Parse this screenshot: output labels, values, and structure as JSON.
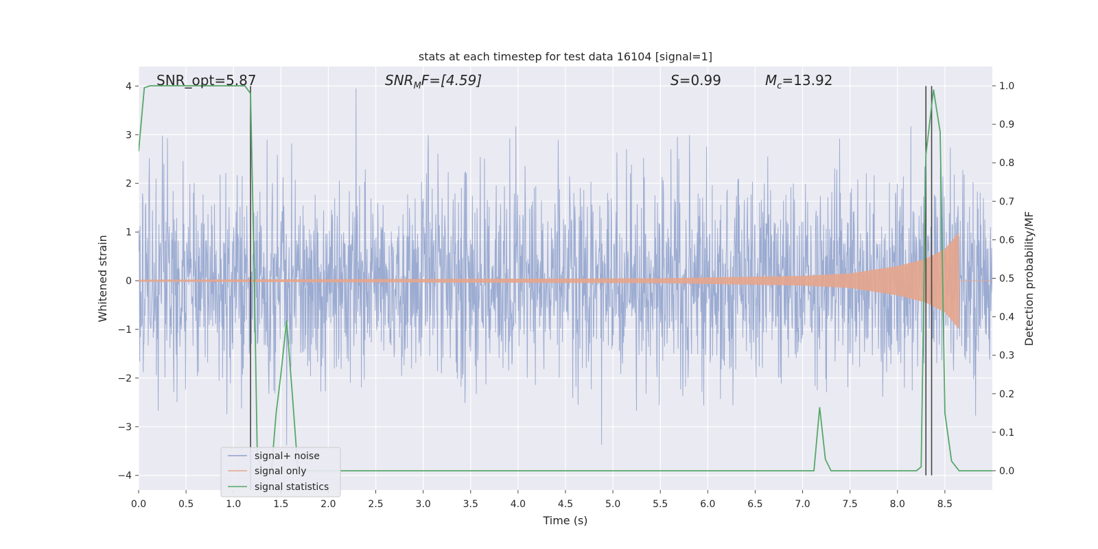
{
  "chart_data": {
    "type": "line",
    "title": "stats at each timestep for test data 16104 [signal=1]",
    "xlabel": "Time (s)",
    "ylabel_left": "Whitened strain",
    "ylabel_right": "Detection probability/MF",
    "xlim": [
      0,
      9.0
    ],
    "ylim_left": [
      -4.3,
      4.4
    ],
    "ylim_right": [
      -0.05,
      1.05
    ],
    "x_ticks": [
      0.0,
      0.5,
      1.0,
      1.5,
      2.0,
      2.5,
      3.0,
      3.5,
      4.0,
      4.5,
      5.0,
      5.5,
      6.0,
      6.5,
      7.0,
      7.5,
      8.0,
      8.5
    ],
    "x_tick_labels": [
      "0.0",
      "0.5",
      "1.0",
      "1.5",
      "2.0",
      "2.5",
      "3.0",
      "3.5",
      "4.0",
      "4.5",
      "5.0",
      "5.5",
      "6.0",
      "6.5",
      "7.0",
      "7.5",
      "8.0",
      "8.5"
    ],
    "y_left_ticks": [
      4,
      3,
      2,
      1,
      0,
      -1,
      -2,
      -3,
      -4
    ],
    "y_left_tick_labels": [
      "4",
      "3",
      "2",
      "1",
      "0",
      "−1",
      "−2",
      "−3",
      "−4"
    ],
    "y_right_ticks": [
      1.0,
      0.9,
      0.8,
      0.7,
      0.6,
      0.5,
      0.4,
      0.3,
      0.2,
      0.1,
      0.0
    ],
    "y_right_tick_labels": [
      "1.0",
      "0.9",
      "0.8",
      "0.7",
      "0.6",
      "0.5",
      "0.4",
      "0.3",
      "0.2",
      "0.1",
      "0.0"
    ],
    "grid": true,
    "legend_position": "lower-left",
    "annotations": {
      "snr_opt": "SNR_opt=5.87",
      "snr_mf_main": "SNR",
      "snr_mf_sub": "M",
      "snr_mf_rest": "F=[4.59]",
      "s_main": "S",
      "s_rest": "=0.99",
      "mc_main": "M",
      "mc_sub": "c",
      "mc_rest": "=13.92"
    },
    "series": [
      {
        "name": "signal+ noise",
        "axis": "left",
        "color": "#8da0cb",
        "note_values": "dense noise spanning roughly -3.8 to 4.0, typical envelope about -2.5 to 2.5",
        "noise_max": 4.0,
        "noise_min": -3.8
      },
      {
        "name": "signal only",
        "axis": "left",
        "color": "#e5a58c",
        "chirp_amplitude_at": [
          [
            0.0,
            0.02
          ],
          [
            5.5,
            0.05
          ],
          [
            7.0,
            0.1
          ],
          [
            7.5,
            0.15
          ],
          [
            8.0,
            0.3
          ],
          [
            8.3,
            0.45
          ],
          [
            8.5,
            0.65
          ],
          [
            8.65,
            1.0
          ]
        ],
        "chirp_end": 8.65
      },
      {
        "name": "signal statistics",
        "axis": "right",
        "color": "#55a868",
        "x": [
          0.0,
          0.06,
          0.12,
          0.2,
          0.5,
          1.0,
          1.12,
          1.18,
          1.22,
          1.25,
          1.3,
          1.4,
          1.45,
          1.5,
          1.56,
          1.62,
          1.68,
          1.75,
          2.0,
          3.0,
          4.0,
          5.0,
          6.0,
          7.0,
          7.12,
          7.18,
          7.24,
          7.3,
          7.5,
          8.0,
          8.2,
          8.25,
          8.3,
          8.38,
          8.45,
          8.5,
          8.57,
          8.65,
          8.7,
          9.0
        ],
        "y": [
          0.83,
          0.995,
          1.0,
          1.0,
          1.0,
          1.0,
          1.0,
          0.98,
          0.5,
          0.05,
          0.0,
          0.0,
          0.15,
          0.25,
          0.39,
          0.2,
          0.0,
          0.0,
          0.0,
          0.0,
          0.0,
          0.0,
          0.0,
          0.0,
          0.0,
          0.165,
          0.03,
          0.0,
          0.0,
          0.0,
          0.0,
          0.01,
          0.82,
          0.99,
          0.88,
          0.15,
          0.025,
          0.0,
          0.0,
          0.0
        ]
      }
    ],
    "vertical_lines": [
      {
        "x": 1.18,
        "color": "#444444",
        "y_from": -4.3,
        "y_to": 4.0
      },
      {
        "x": 8.3,
        "color": "#444444",
        "y_from": -4.0,
        "y_to": 4.0
      },
      {
        "x": 8.36,
        "color": "#444444",
        "y_from": -4.0,
        "y_to": 4.0
      }
    ],
    "right_axis_offset_gridlines": [
      0.7,
      0.6,
      0.4,
      0.3
    ]
  }
}
